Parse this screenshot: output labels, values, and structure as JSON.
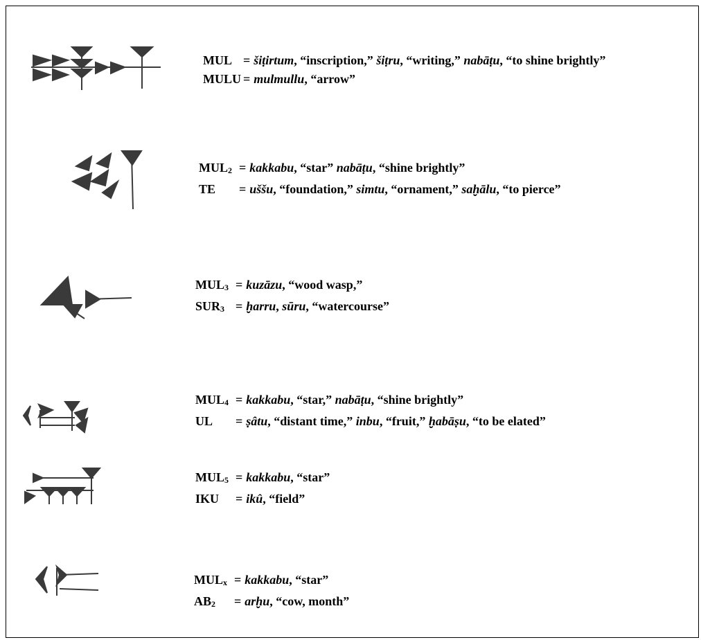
{
  "equals": "=",
  "entries": [
    {
      "lines": [
        {
          "sign": "MUL",
          "sub": null,
          "gloss": [
            {
              "text": "šiṭirtum",
              "italic": true
            },
            {
              "text": ", “inscription,” ",
              "italic": false
            },
            {
              "text": "šiṭru",
              "italic": true
            },
            {
              "text": ", “writing,” ",
              "italic": false
            },
            {
              "text": "nabāṭu",
              "italic": true
            },
            {
              "text": ", “to shine brightly”",
              "italic": false
            }
          ]
        },
        {
          "sign": "MULU",
          "sub": null,
          "gloss": [
            {
              "text": "mulmullu",
              "italic": true
            },
            {
              "text": ", “arrow”",
              "italic": false
            }
          ]
        }
      ]
    },
    {
      "lines": [
        {
          "sign": "MUL",
          "sub": "2",
          "gloss": [
            {
              "text": "kakkabu",
              "italic": true
            },
            {
              "text": ", “star” ",
              "italic": false
            },
            {
              "text": "nabāṭu",
              "italic": true
            },
            {
              "text": ", “shine brightly”",
              "italic": false
            }
          ]
        },
        {
          "sign": "TE",
          "sub": null,
          "gloss": [
            {
              "text": "uššu",
              "italic": true
            },
            {
              "text": ", “foundation,” ",
              "italic": false
            },
            {
              "text": "simtu",
              "italic": true
            },
            {
              "text": ", “ornament,” ",
              "italic": false
            },
            {
              "text": "saḫālu",
              "italic": true
            },
            {
              "text": ", “to pierce”",
              "italic": false
            }
          ]
        }
      ]
    },
    {
      "lines": [
        {
          "sign": "MUL",
          "sub": "3",
          "gloss": [
            {
              "text": "kuzāzu",
              "italic": true
            },
            {
              "text": ", “wood wasp,”",
              "italic": false
            }
          ]
        },
        {
          "sign": "SUR",
          "sub": "3",
          "gloss": [
            {
              "text": "ḫarru",
              "italic": true
            },
            {
              "text": ", ",
              "italic": false
            },
            {
              "text": "sūru",
              "italic": true
            },
            {
              "text": ", “watercourse”",
              "italic": false
            }
          ]
        }
      ]
    },
    {
      "lines": [
        {
          "sign": "MUL",
          "sub": "4",
          "gloss": [
            {
              "text": "kakkabu",
              "italic": true
            },
            {
              "text": ", “star,” ",
              "italic": false
            },
            {
              "text": "nabāṭu",
              "italic": true
            },
            {
              "text": ", “shine brightly”",
              "italic": false
            }
          ]
        },
        {
          "sign": "UL",
          "sub": null,
          "gloss": [
            {
              "text": "ṣâtu",
              "italic": true
            },
            {
              "text": ", “distant time,” ",
              "italic": false
            },
            {
              "text": "inbu",
              "italic": true
            },
            {
              "text": ", “fruit,” ",
              "italic": false
            },
            {
              "text": "ḫabāṣu",
              "italic": true
            },
            {
              "text": ", “to be elated”",
              "italic": false
            }
          ]
        }
      ]
    },
    {
      "lines": [
        {
          "sign": "MUL",
          "sub": "5",
          "gloss": [
            {
              "text": "kakkabu",
              "italic": true
            },
            {
              "text": ", “star”",
              "italic": false
            }
          ]
        },
        {
          "sign": "IKU",
          "sub": null,
          "gloss": [
            {
              "text": "ikû",
              "italic": true
            },
            {
              "text": ", “field”",
              "italic": false
            }
          ]
        }
      ]
    },
    {
      "lines": [
        {
          "sign": "MUL",
          "sub": "x",
          "gloss": [
            {
              "text": "kakkabu",
              "italic": true
            },
            {
              "text": ", “star”",
              "italic": false
            }
          ]
        },
        {
          "sign": "AB",
          "sub": "2",
          "gloss": [
            {
              "text": "arḫu",
              "italic": true
            },
            {
              "text": ", “cow, month”",
              "italic": false
            }
          ]
        }
      ]
    }
  ]
}
